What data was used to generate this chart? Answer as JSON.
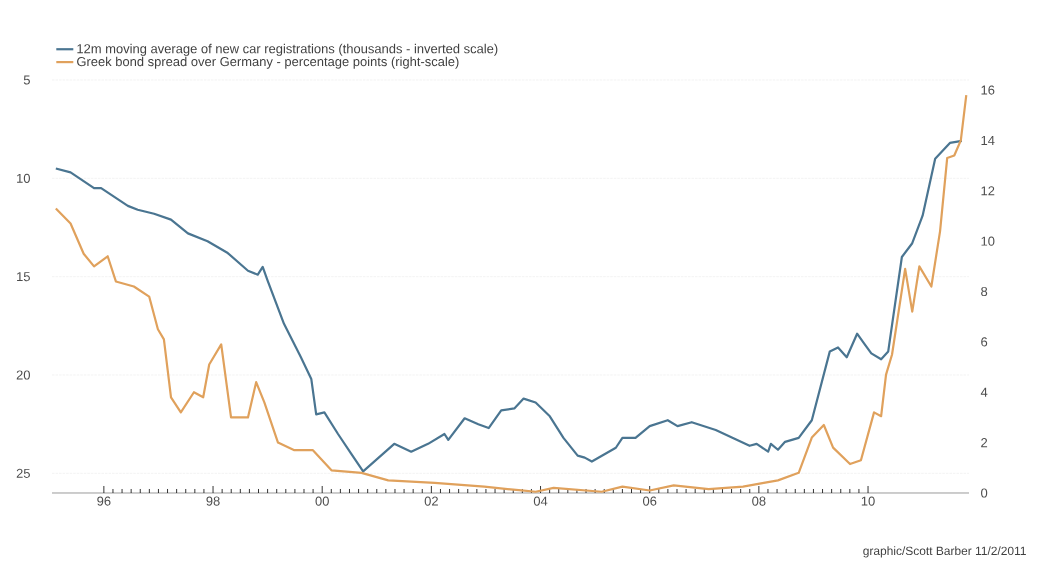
{
  "chart_data": {
    "type": "line",
    "series": [
      {
        "name": "12m moving average of new car registrations (thousands - inverted scale)",
        "color": "#4a7591",
        "axis": "y",
        "x": [
          1995.12,
          1995.39,
          1995.82,
          1995.95,
          1996.44,
          1996.62,
          1996.92,
          1997.23,
          1997.54,
          1997.9,
          1998.27,
          1998.64,
          1998.82,
          1998.91,
          1999.0,
          1999.3,
          1999.61,
          1999.8,
          1999.89,
          2000.04,
          2000.29,
          2000.53,
          2000.75,
          2001.32,
          2001.63,
          2001.94,
          2002.24,
          2002.31,
          2002.61,
          2002.86,
          2003.05,
          2003.28,
          2003.52,
          2003.69,
          2003.91,
          2004.17,
          2004.42,
          2004.68,
          2004.81,
          2004.94,
          2005.38,
          2005.5,
          2005.74,
          2006.0,
          2006.33,
          2006.51,
          2006.77,
          2007.21,
          2007.83,
          2007.96,
          2008.17,
          2008.22,
          2008.35,
          2008.48,
          2008.73,
          2008.97,
          2009.3,
          2009.45,
          2009.61,
          2009.8,
          2009.93,
          2010.06,
          2010.24,
          2010.37,
          2010.62,
          2010.81,
          2011.0,
          2011.23,
          2011.5,
          2011.72
        ],
        "values": [
          9.5,
          9.7,
          10.5,
          10.5,
          11.4,
          11.6,
          11.8,
          12.1,
          12.8,
          13.2,
          13.8,
          14.7,
          14.9,
          14.5,
          15.2,
          17.4,
          19.1,
          20.2,
          22.0,
          21.9,
          23.0,
          24.0,
          24.9,
          23.5,
          23.9,
          23.5,
          23.0,
          23.3,
          22.2,
          22.5,
          22.7,
          21.8,
          21.7,
          21.2,
          21.4,
          22.1,
          23.2,
          24.1,
          24.2,
          24.4,
          23.7,
          23.2,
          23.2,
          22.6,
          22.3,
          22.6,
          22.4,
          22.8,
          23.6,
          23.5,
          23.9,
          23.5,
          23.8,
          23.4,
          23.2,
          22.3,
          18.8,
          18.6,
          19.1,
          17.9,
          18.4,
          18.9,
          19.2,
          18.8,
          14.0,
          13.3,
          11.9,
          9.0,
          8.2,
          8.1
        ]
      },
      {
        "name": "Greek bond spread over Germany - percentage points (right-scale)",
        "color": "#e0a15c",
        "axis": "y2",
        "x": [
          1995.12,
          1995.39,
          1995.63,
          1995.82,
          1996.07,
          1996.22,
          1996.55,
          1996.83,
          1996.99,
          1997.1,
          1997.23,
          1997.41,
          1997.65,
          1997.82,
          1997.93,
          1998.15,
          1998.33,
          1998.64,
          1998.79,
          1998.94,
          1999.19,
          1999.49,
          1999.83,
          2000.17,
          2000.72,
          2001.21,
          2002.06,
          2002.97,
          2003.65,
          2003.91,
          2004.24,
          2005.12,
          2005.5,
          2006.0,
          2006.44,
          2007.08,
          2007.71,
          2008.09,
          2008.35,
          2008.73,
          2008.97,
          2009.19,
          2009.36,
          2009.67,
          2009.87,
          2010.11,
          2010.24,
          2010.33,
          2010.44,
          2010.68,
          2010.81,
          2010.94,
          2011.16,
          2011.32,
          2011.45,
          2011.58,
          2011.7,
          2011.8
        ],
        "values": [
          11.3,
          10.7,
          9.5,
          9.0,
          9.4,
          8.4,
          8.2,
          7.8,
          6.5,
          6.1,
          3.8,
          3.2,
          4.0,
          3.8,
          5.1,
          5.9,
          3.0,
          3.0,
          4.4,
          3.6,
          2.0,
          1.7,
          1.7,
          0.9,
          0.8,
          0.5,
          0.4,
          0.25,
          0.1,
          0.05,
          0.2,
          0.05,
          0.25,
          0.1,
          0.3,
          0.15,
          0.25,
          0.4,
          0.5,
          0.8,
          2.2,
          2.7,
          1.8,
          1.15,
          1.3,
          3.2,
          3.05,
          4.7,
          5.5,
          8.9,
          7.2,
          9.0,
          8.2,
          10.4,
          13.3,
          13.4,
          14.0,
          15.8
        ]
      }
    ],
    "xlim": [
      1995.05,
      2011.85
    ],
    "xticks": [
      {
        "value": 1996,
        "label": "96"
      },
      {
        "value": 1998,
        "label": "98"
      },
      {
        "value": 2000,
        "label": "00"
      },
      {
        "value": 2002,
        "label": "02"
      },
      {
        "value": 2004,
        "label": "04"
      },
      {
        "value": 2006,
        "label": "06"
      },
      {
        "value": 2008,
        "label": "08"
      },
      {
        "value": 2010,
        "label": "10"
      }
    ],
    "ylim": [
      26,
      5
    ],
    "yticks": [
      5,
      10,
      15,
      20,
      25
    ],
    "y2lim": [
      0,
      16.4
    ],
    "y2ticks": [
      0,
      2,
      4,
      6,
      8,
      10,
      12,
      14,
      16
    ],
    "grid": "y",
    "legend": "top left",
    "annotations": [
      "graphic/Scott Barber 11/2/2011"
    ]
  }
}
